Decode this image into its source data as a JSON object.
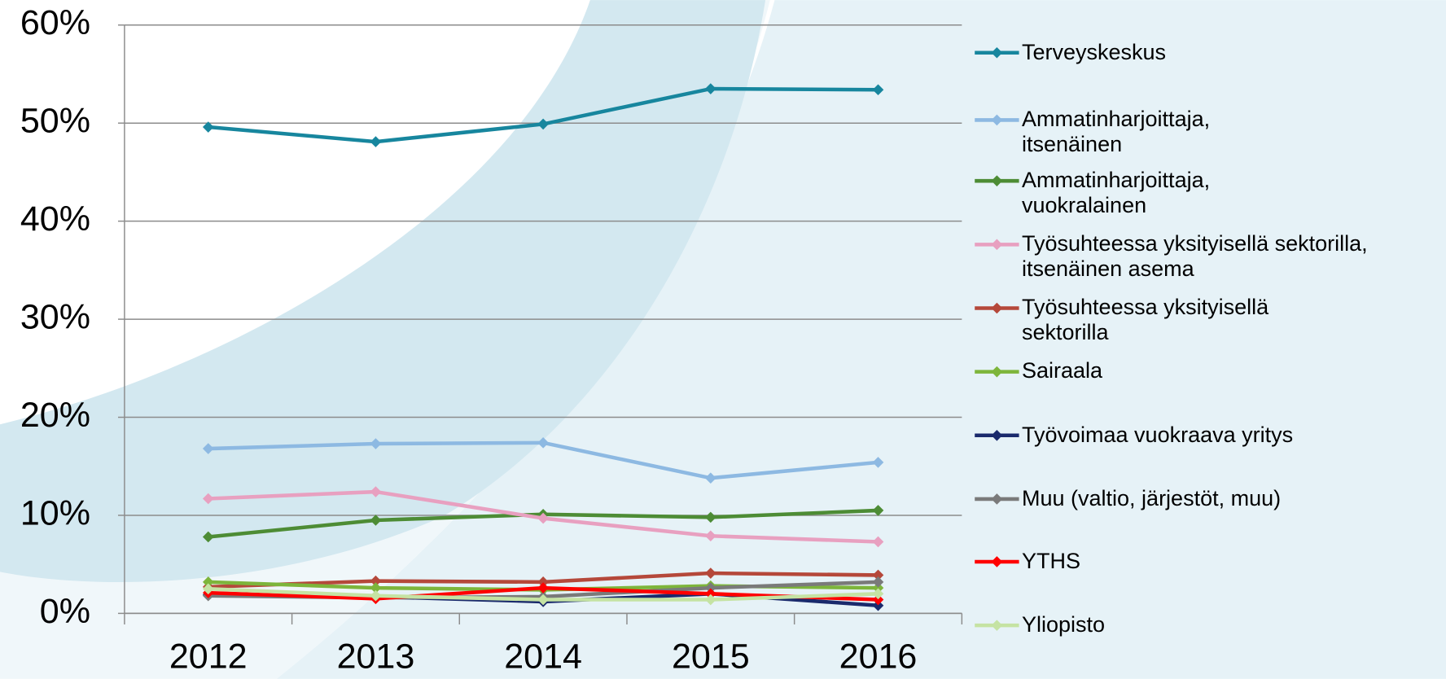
{
  "chart_data": {
    "type": "line",
    "categories": [
      "2012",
      "2013",
      "2014",
      "2015",
      "2016"
    ],
    "ylim": [
      0,
      60
    ],
    "yticks": [
      {
        "value": 0,
        "label": "0%"
      },
      {
        "value": 10,
        "label": "10%"
      },
      {
        "value": 20,
        "label": "20%"
      },
      {
        "value": 30,
        "label": "30%"
      },
      {
        "value": 40,
        "label": "40%"
      },
      {
        "value": 50,
        "label": "50%"
      },
      {
        "value": 60,
        "label": "60%"
      }
    ],
    "grid": true,
    "legend": "right",
    "series": [
      {
        "name": "Terveyskeskus",
        "color": "#17869e",
        "values": [
          49.6,
          48.1,
          49.9,
          53.5,
          53.4
        ]
      },
      {
        "name": "Ammatinharjoittaja,\nitsenäinen",
        "color": "#8db9e2",
        "values": [
          16.8,
          17.3,
          17.4,
          13.8,
          15.4
        ]
      },
      {
        "name": "Ammatinharjoittaja,\nvuokralainen",
        "color": "#4d8c35",
        "values": [
          7.8,
          9.5,
          10.1,
          9.8,
          10.5
        ]
      },
      {
        "name": "Työsuhteessa yksityisellä sektorilla,\nitsenäinen asema",
        "color": "#e8a0c0",
        "values": [
          11.7,
          12.4,
          9.7,
          7.9,
          7.3
        ]
      },
      {
        "name": "Työsuhteessa yksityisellä\nsektorilla",
        "color": "#b5483a",
        "values": [
          2.7,
          3.3,
          3.2,
          4.1,
          3.9
        ]
      },
      {
        "name": "Sairaala",
        "color": "#7db53b",
        "values": [
          3.2,
          2.6,
          2.4,
          2.8,
          2.6
        ]
      },
      {
        "name": "Työvoimaa vuokraava yritys",
        "color": "#1a2a6c",
        "values": [
          1.9,
          1.7,
          1.2,
          2.0,
          0.8
        ]
      },
      {
        "name": "Muu (valtio, järjestöt, muu)",
        "color": "#7a7a7a",
        "values": [
          1.8,
          1.6,
          1.7,
          2.6,
          3.2
        ]
      },
      {
        "name": "YTHS",
        "color": "#ff0000",
        "values": [
          2.1,
          1.5,
          2.6,
          2.0,
          1.4
        ]
      },
      {
        "name": "Yliopisto",
        "color": "#c5e3a3",
        "values": [
          2.5,
          1.8,
          1.4,
          1.4,
          2.0
        ]
      }
    ]
  }
}
